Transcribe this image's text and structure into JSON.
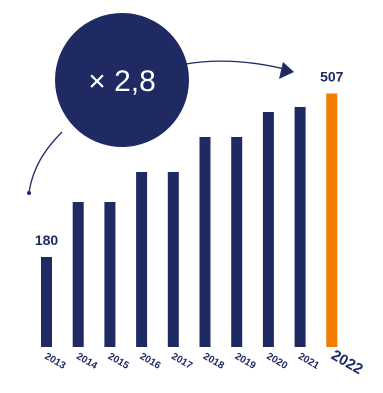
{
  "chart_data": {
    "type": "bar",
    "categories": [
      "2013",
      "2014",
      "2015",
      "2016",
      "2017",
      "2018",
      "2019",
      "2020",
      "2021",
      "2022"
    ],
    "values": [
      180,
      290,
      290,
      350,
      350,
      420,
      420,
      470,
      480,
      507
    ],
    "data_labels": {
      "first": "180",
      "last": "507"
    },
    "annotation": "× 2,8",
    "highlight_category": "2022",
    "colors": {
      "bar": "#1f2a63",
      "highlight": "#f07c00",
      "bubble": "#1f2a63",
      "text": "#1f2a63"
    },
    "grid": false,
    "legend": "none"
  }
}
